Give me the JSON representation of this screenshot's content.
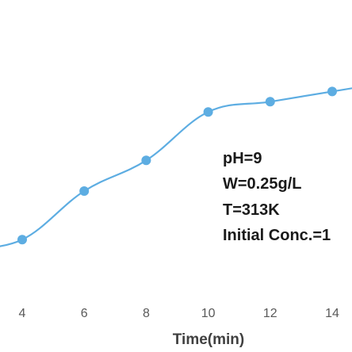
{
  "chart_data": {
    "type": "line",
    "xlabel": "Time(min)",
    "ylabel": "",
    "xlim": [
      1.5,
      15
    ],
    "ylim": [
      0,
      100
    ],
    "x_ticks": [
      "4",
      "6",
      "8",
      "10",
      "12",
      "14"
    ],
    "grid": false,
    "series": [
      {
        "color": "#5dade2",
        "smooth": true,
        "marker": "circle",
        "x": [
          2,
          4,
          6,
          8,
          10,
          12,
          14,
          15
        ],
        "y": [
          18,
          22,
          41,
          53,
          72,
          76,
          80,
          82
        ]
      }
    ],
    "annotations": [
      "pH=9",
      "W=0.25g/L",
      "T=313K",
      "Initial Conc.=1"
    ]
  }
}
